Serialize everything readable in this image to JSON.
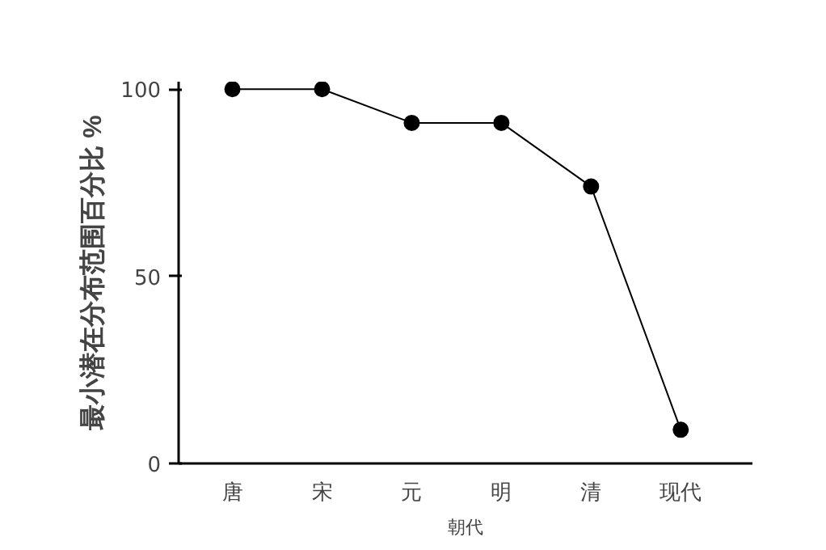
{
  "chart_data": {
    "type": "line",
    "categories": [
      "唐",
      "宋",
      "元",
      "明",
      "清",
      "现代"
    ],
    "series": [
      {
        "color": "#000000",
        "values": [
          100,
          100,
          91,
          91,
          74,
          9
        ]
      }
    ],
    "xlabel": "朝代",
    "ylabel": "最小潜在分布范围百分比 %",
    "ylim": [
      0,
      102
    ],
    "yticks": [
      0,
      50,
      100
    ],
    "grid": false,
    "marker": "circle",
    "line_style": "solid"
  }
}
